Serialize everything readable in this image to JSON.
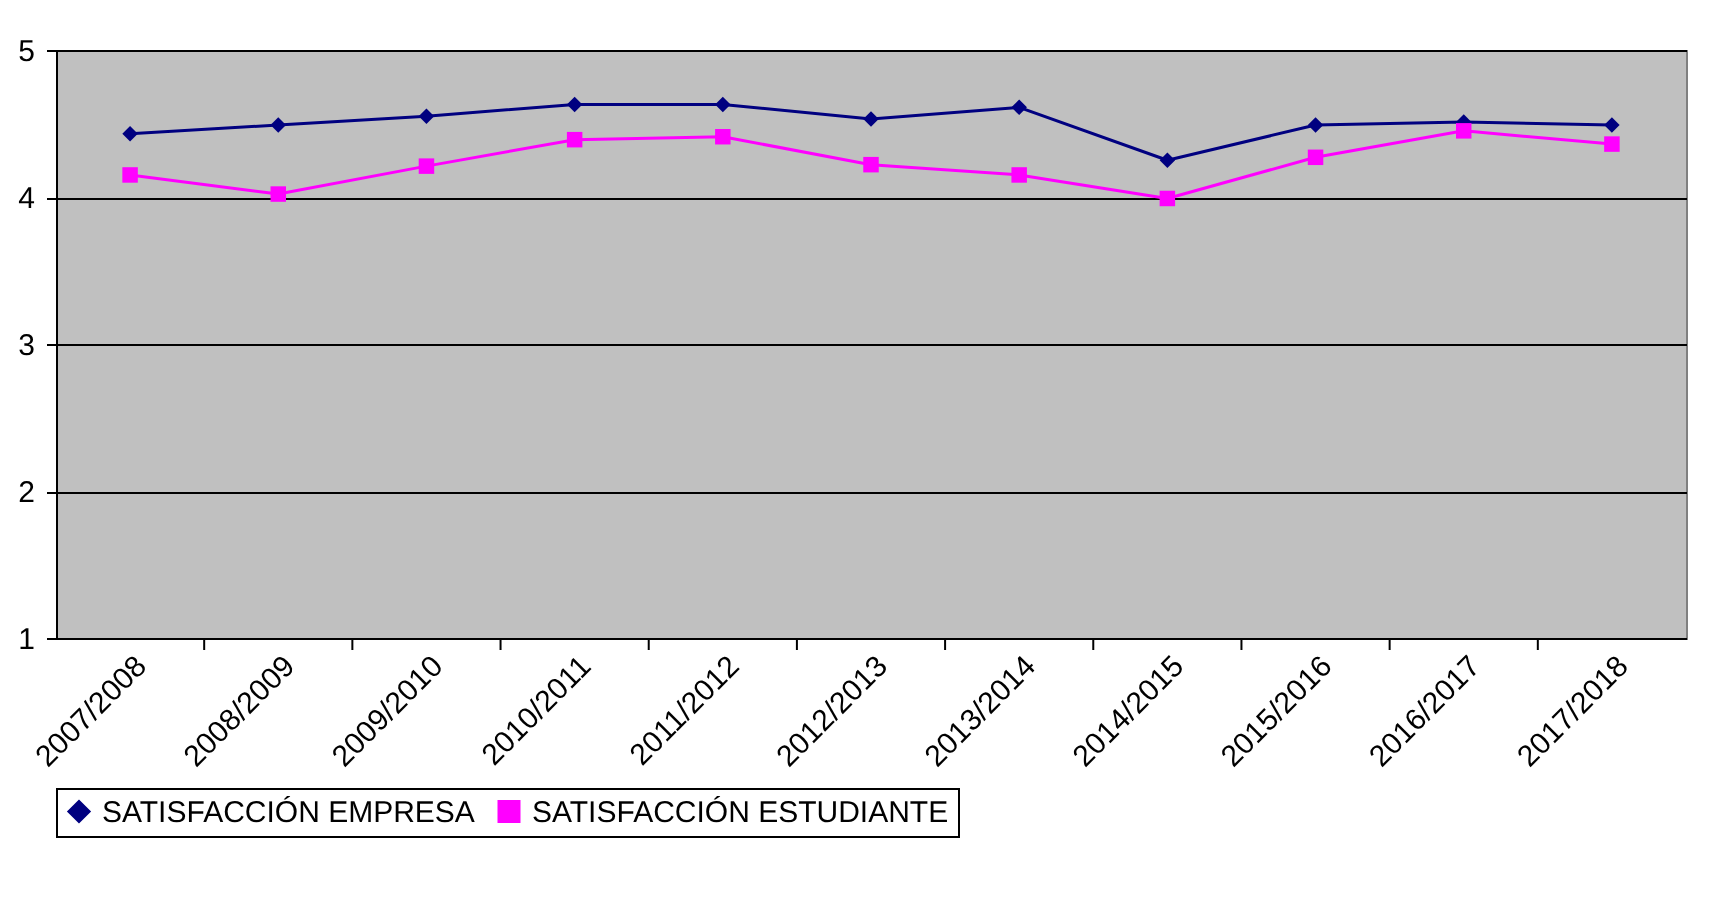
{
  "chart_data": {
    "type": "line",
    "categories": [
      "2007/2008",
      "2008/2009",
      "2009/2010",
      "2010/2011",
      "2011/2012",
      "2012/2013",
      "2013/2014",
      "2014/2015",
      "2015/2016",
      "2016/2017",
      "2017/2018"
    ],
    "series": [
      {
        "name": "SATISFACCIÓN EMPRESA",
        "color": "#000080",
        "marker": "diamond",
        "values": [
          4.43,
          4.49,
          4.55,
          4.63,
          4.63,
          4.53,
          4.61,
          4.25,
          4.49,
          4.51,
          4.49
        ]
      },
      {
        "name": "SATISFACCIÓN ESTUDIANTE",
        "color": "#ff00ff",
        "marker": "square",
        "values": [
          4.15,
          4.02,
          4.21,
          4.39,
          4.41,
          4.22,
          4.15,
          3.99,
          4.27,
          4.45,
          4.36
        ]
      }
    ],
    "ylim": [
      1,
      5
    ],
    "yticks": [
      1,
      2,
      3,
      4,
      5
    ],
    "grid": "y",
    "legend": "bottom"
  }
}
